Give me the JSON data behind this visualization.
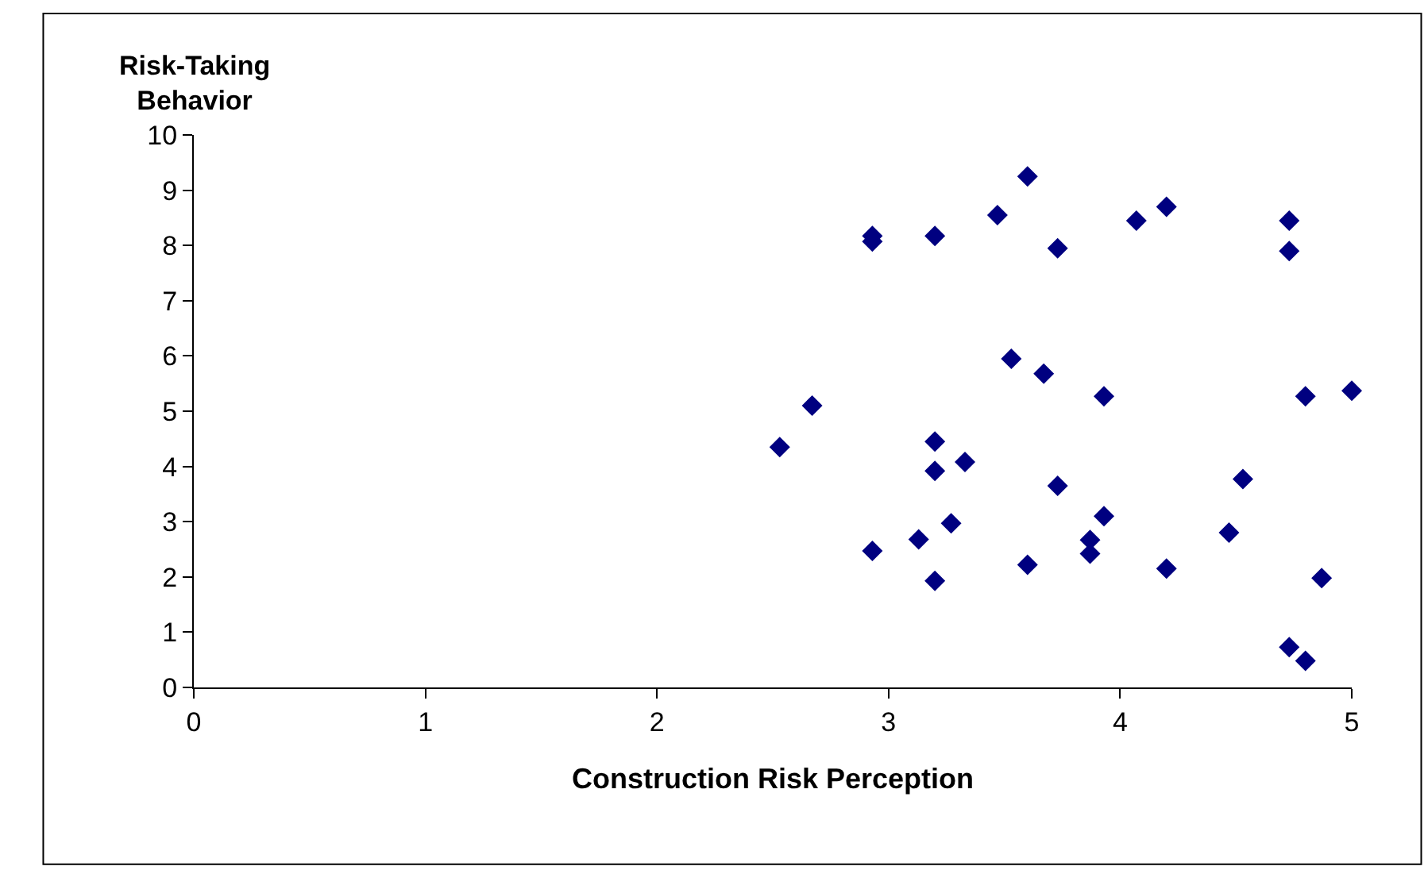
{
  "chart_data": {
    "type": "scatter",
    "xlabel": "Construction Risk Perception",
    "ylabel": "Risk-Taking Behavior",
    "x": [
      2.93,
      2.93,
      3.2,
      3.47,
      3.6,
      3.73,
      4.07,
      4.2,
      4.73,
      4.73,
      2.53,
      2.67,
      3.53,
      3.67,
      3.93,
      4.8,
      5.0,
      3.2,
      3.2,
      3.33,
      3.73,
      4.53,
      3.93,
      3.27,
      3.13,
      2.93,
      3.87,
      3.87,
      4.47,
      3.6,
      4.2,
      3.2,
      4.87,
      4.73,
      4.8
    ],
    "series": [
      {
        "color": "#000080",
        "values": [
          8.17,
          8.07,
          8.17,
          8.55,
          9.25,
          7.95,
          8.45,
          8.7,
          8.45,
          7.9,
          4.35,
          5.1,
          5.95,
          5.68,
          5.27,
          5.27,
          5.37,
          4.45,
          3.92,
          4.08,
          3.65,
          3.77,
          3.1,
          2.97,
          2.68,
          2.47,
          2.67,
          2.42,
          2.8,
          2.22,
          2.15,
          1.93,
          1.98,
          0.73,
          0.48
        ]
      }
    ],
    "xlim": [
      0,
      5
    ],
    "xticks": [
      0,
      1,
      2,
      3,
      4,
      5
    ],
    "ylim": [
      0,
      10
    ],
    "yticks": [
      0,
      1,
      2,
      3,
      4,
      5,
      6,
      7,
      8,
      9,
      10
    ],
    "marker": "diamond",
    "grid": false,
    "legend": false
  }
}
